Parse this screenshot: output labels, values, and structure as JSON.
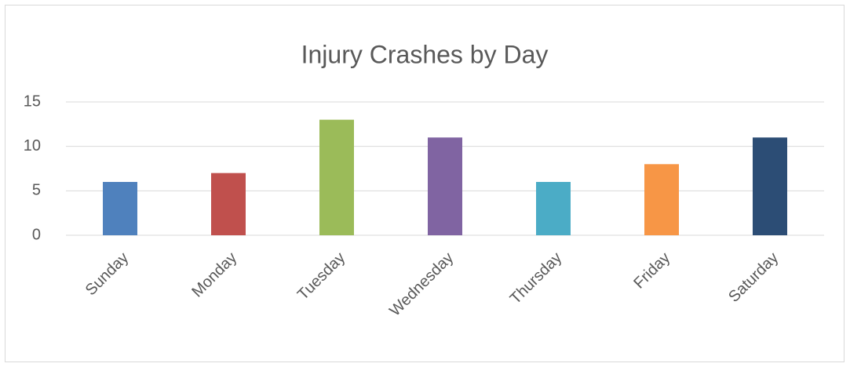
{
  "chart_data": {
    "type": "bar",
    "title": "Injury Crashes by Day",
    "categories": [
      "Sunday",
      "Monday",
      "Tuesday",
      "Wednesday",
      "Thursday",
      "Friday",
      "Saturday"
    ],
    "values": [
      6,
      7,
      13,
      11,
      6,
      8,
      11
    ],
    "colors": [
      "#4f81bd",
      "#c0504d",
      "#9bbb59",
      "#8064a2",
      "#4bacc6",
      "#f79646",
      "#2c4d75"
    ],
    "ylim": [
      0,
      15
    ],
    "yticks": [
      0,
      5,
      10,
      15
    ],
    "grid": true
  }
}
